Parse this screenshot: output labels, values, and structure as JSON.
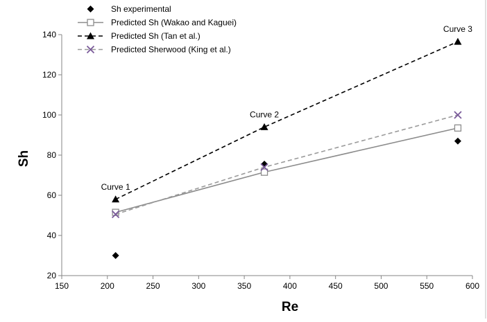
{
  "chart_data": {
    "type": "line",
    "title": "",
    "xlabel": "Re",
    "ylabel": "Sh",
    "xlim": [
      150,
      600
    ],
    "ylim": [
      20,
      140
    ],
    "xticks": [
      150,
      200,
      250,
      300,
      350,
      400,
      450,
      500,
      550,
      600
    ],
    "yticks": [
      20,
      40,
      60,
      80,
      100,
      120,
      140
    ],
    "grid": false,
    "legend_position": "top-left",
    "series": [
      {
        "name": "Sh experimental",
        "style": "markers-only",
        "marker": "diamond",
        "color": "#000000",
        "x": [
          209,
          372,
          584
        ],
        "y": [
          30,
          75.5,
          87
        ]
      },
      {
        "name": "Predicted Sh (Wakao and Kaguei)",
        "style": "solid",
        "marker": "open-square",
        "color": "#8c8c8c",
        "x": [
          209,
          372,
          584
        ],
        "y": [
          51.5,
          71.5,
          93.5
        ]
      },
      {
        "name": "Predicted Sh (Tan et al.)",
        "style": "dashed",
        "marker": "triangle",
        "color": "#000000",
        "x": [
          209,
          372,
          584
        ],
        "y": [
          58,
          94,
          136.5
        ]
      },
      {
        "name": "Predicted Sherwood (King et al.)",
        "style": "dashed",
        "marker": "x",
        "color": "#9a9a9a",
        "marker_color": "#7a5a9a",
        "x": [
          209,
          372,
          584
        ],
        "y": [
          50.5,
          74,
          100
        ]
      }
    ],
    "annotations": [
      {
        "text": "Curve 1",
        "x": 209,
        "y": 58
      },
      {
        "text": "Curve 2",
        "x": 372,
        "y": 94
      },
      {
        "text": "Curve 3",
        "x": 584,
        "y": 136.5
      }
    ]
  }
}
